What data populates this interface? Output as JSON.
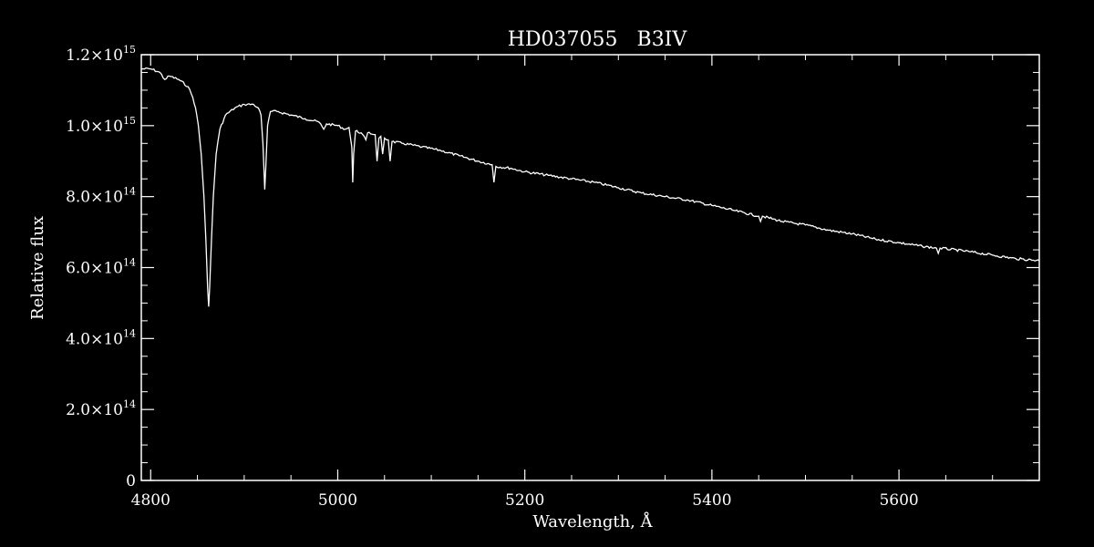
{
  "chart_data": {
    "type": "line",
    "title": "HD037055   B3IV",
    "xlabel": "Wavelength, Å",
    "ylabel": "Relative flux",
    "xlim": [
      4790,
      5750
    ],
    "ylim": [
      0,
      1200000000000000.0
    ],
    "x_ticks": [
      {
        "value": 4800,
        "label": "4800"
      },
      {
        "value": 5000,
        "label": "5000"
      },
      {
        "value": 5200,
        "label": "5200"
      },
      {
        "value": 5400,
        "label": "5400"
      },
      {
        "value": 5600,
        "label": "5600"
      }
    ],
    "y_ticks": [
      {
        "value": 0,
        "mantissa": "0",
        "exponent": ""
      },
      {
        "value": 200000000000000.0,
        "mantissa": "2.0×10",
        "exponent": "14"
      },
      {
        "value": 400000000000000.0,
        "mantissa": "4.0×10",
        "exponent": "14"
      },
      {
        "value": 600000000000000.0,
        "mantissa": "6.0×10",
        "exponent": "14"
      },
      {
        "value": 800000000000000.0,
        "mantissa": "8.0×10",
        "exponent": "14"
      },
      {
        "value": 1000000000000000.0,
        "mantissa": "1.0×10",
        "exponent": "15"
      },
      {
        "value": 1200000000000000.0,
        "mantissa": "1.2×10",
        "exponent": "15"
      }
    ],
    "grid": false,
    "legend": "none",
    "colors": {
      "background": "#000000",
      "foreground": "#ffffff"
    },
    "series": [
      {
        "points": [
          [
            4790,
            1160000000000000.0
          ],
          [
            4800,
            1160000000000000.0
          ],
          [
            4810,
            1150000000000000.0
          ],
          [
            4815,
            1130000000000000.0
          ],
          [
            4820,
            1140000000000000.0
          ],
          [
            4830,
            1130000000000000.0
          ],
          [
            4840,
            1110000000000000.0
          ],
          [
            4845,
            1080000000000000.0
          ],
          [
            4848,
            1050000000000000.0
          ],
          [
            4851,
            1000000000000000.0
          ],
          [
            4854,
            920000000000000.0
          ],
          [
            4857,
            800000000000000.0
          ],
          [
            4859,
            680000000000000.0
          ],
          [
            4861,
            540000000000000.0
          ],
          [
            4862,
            490000000000000.0
          ],
          [
            4863,
            540000000000000.0
          ],
          [
            4865,
            680000000000000.0
          ],
          [
            4867,
            800000000000000.0
          ],
          [
            4870,
            920000000000000.0
          ],
          [
            4874,
            990000000000000.0
          ],
          [
            4880,
            1030000000000000.0
          ],
          [
            4890,
            1050000000000000.0
          ],
          [
            4900,
            1060000000000000.0
          ],
          [
            4910,
            1060000000000000.0
          ],
          [
            4915,
            1050000000000000.0
          ],
          [
            4918,
            1030000000000000.0
          ],
          [
            4920,
            950000000000000.0
          ],
          [
            4922,
            820000000000000.0
          ],
          [
            4923,
            880000000000000.0
          ],
          [
            4925,
            1000000000000000.0
          ],
          [
            4928,
            1040000000000000.0
          ],
          [
            4935,
            1040000000000000.0
          ],
          [
            4950,
            1030000000000000.0
          ],
          [
            4965,
            1020000000000000.0
          ],
          [
            4980,
            1010000000000000.0
          ],
          [
            4985,
            990000000000000.0
          ],
          [
            4988,
            1005000000000000.0
          ],
          [
            5000,
            1000000000000000.0
          ],
          [
            5008,
            990000000000000.0
          ],
          [
            5012,
            995000000000000.0
          ],
          [
            5015,
            940000000000000.0
          ],
          [
            5016,
            840000000000000.0
          ],
          [
            5017,
            920000000000000.0
          ],
          [
            5019,
            985000000000000.0
          ],
          [
            5025,
            980000000000000.0
          ],
          [
            5030,
            960000000000000.0
          ],
          [
            5032,
            980000000000000.0
          ],
          [
            5040,
            975000000000000.0
          ],
          [
            5042,
            900000000000000.0
          ],
          [
            5044,
            965000000000000.0
          ],
          [
            5046,
            970000000000000.0
          ],
          [
            5048,
            920000000000000.0
          ],
          [
            5050,
            965000000000000.0
          ],
          [
            5054,
            960000000000000.0
          ],
          [
            5056,
            900000000000000.0
          ],
          [
            5058,
            955000000000000.0
          ],
          [
            5070,
            950000000000000.0
          ],
          [
            5090,
            940000000000000.0
          ],
          [
            5110,
            930000000000000.0
          ],
          [
            5130,
            915000000000000.0
          ],
          [
            5150,
            900000000000000.0
          ],
          [
            5165,
            890000000000000.0
          ],
          [
            5167,
            840000000000000.0
          ],
          [
            5169,
            885000000000000.0
          ],
          [
            5185,
            880000000000000.0
          ],
          [
            5200,
            870000000000000.0
          ],
          [
            5225,
            860000000000000.0
          ],
          [
            5250,
            850000000000000.0
          ],
          [
            5275,
            840000000000000.0
          ],
          [
            5300,
            825000000000000.0
          ],
          [
            5325,
            810000000000000.0
          ],
          [
            5350,
            800000000000000.0
          ],
          [
            5375,
            790000000000000.0
          ],
          [
            5400,
            775000000000000.0
          ],
          [
            5425,
            760000000000000.0
          ],
          [
            5450,
            745000000000000.0
          ],
          [
            5452,
            730000000000000.0
          ],
          [
            5454,
            745000000000000.0
          ],
          [
            5475,
            730000000000000.0
          ],
          [
            5500,
            720000000000000.0
          ],
          [
            5525,
            705000000000000.0
          ],
          [
            5550,
            695000000000000.0
          ],
          [
            5575,
            680000000000000.0
          ],
          [
            5600,
            670000000000000.0
          ],
          [
            5625,
            660000000000000.0
          ],
          [
            5640,
            655000000000000.0
          ],
          [
            5642,
            640000000000000.0
          ],
          [
            5644,
            655000000000000.0
          ],
          [
            5675,
            645000000000000.0
          ],
          [
            5700,
            635000000000000.0
          ],
          [
            5725,
            625000000000000.0
          ],
          [
            5750,
            620000000000000.0
          ]
        ]
      }
    ]
  }
}
